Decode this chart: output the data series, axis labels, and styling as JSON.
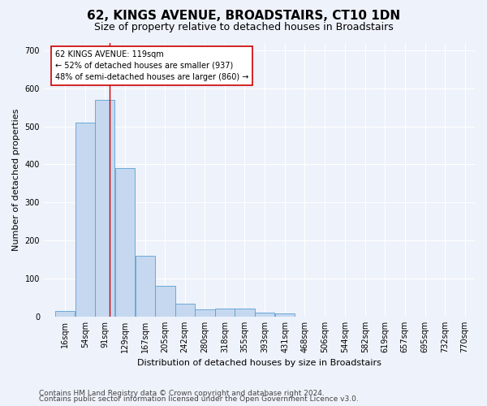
{
  "title": "62, KINGS AVENUE, BROADSTAIRS, CT10 1DN",
  "subtitle": "Size of property relative to detached houses in Broadstairs",
  "xlabel": "Distribution of detached houses by size in Broadstairs",
  "ylabel": "Number of detached properties",
  "bar_color": "#c5d8ef",
  "bar_edge_color": "#5a9fd4",
  "bar_heights": [
    15,
    510,
    570,
    390,
    160,
    82,
    33,
    20,
    22,
    22,
    10,
    9,
    0,
    0,
    0,
    0,
    0,
    0,
    0,
    0
  ],
  "bin_labels": [
    "16sqm",
    "54sqm",
    "91sqm",
    "129sqm",
    "167sqm",
    "205sqm",
    "242sqm",
    "280sqm",
    "318sqm",
    "355sqm",
    "393sqm",
    "431sqm",
    "468sqm",
    "506sqm",
    "544sqm",
    "582sqm",
    "619sqm",
    "657sqm",
    "695sqm",
    "732sqm",
    "770sqm"
  ],
  "bin_edges": [
    16,
    54,
    91,
    129,
    167,
    205,
    242,
    280,
    318,
    355,
    393,
    431,
    468,
    506,
    544,
    582,
    619,
    657,
    695,
    732,
    770
  ],
  "ylim": [
    0,
    720
  ],
  "yticks": [
    0,
    100,
    200,
    300,
    400,
    500,
    600,
    700
  ],
  "vline_x": 119,
  "vline_color": "#cc0000",
  "annotation_text": "62 KINGS AVENUE: 119sqm\n← 52% of detached houses are smaller (937)\n48% of semi-detached houses are larger (860) →",
  "annotation_box_color": "#ffffff",
  "annotation_box_edge": "#cc0000",
  "footnote1": "Contains HM Land Registry data © Crown copyright and database right 2024.",
  "footnote2": "Contains public sector information licensed under the Open Government Licence v3.0.",
  "background_color": "#eef2fa",
  "grid_color": "#ffffff",
  "title_fontsize": 11,
  "subtitle_fontsize": 9,
  "label_fontsize": 8,
  "tick_fontsize": 7,
  "footnote_fontsize": 6.5
}
